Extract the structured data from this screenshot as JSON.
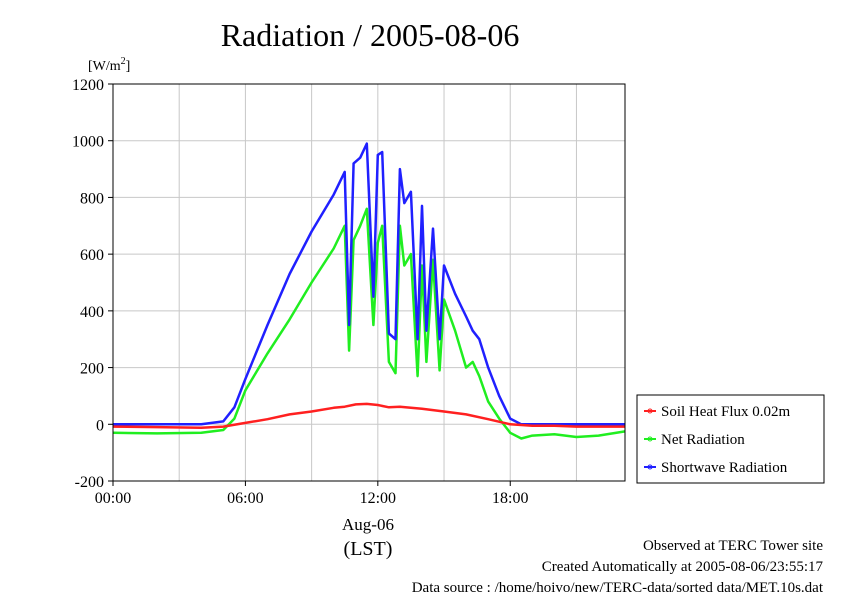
{
  "chart_data": {
    "type": "line",
    "title": "Radiation / 2005-08-06",
    "ylabel_unit": "[W/m",
    "ylabel_unit_sup": "2",
    "ylabel_unit_close": "]",
    "ylim": [
      -200,
      1200
    ],
    "yticks": [
      "-200",
      "0",
      "200",
      "400",
      "600",
      "800",
      "1000",
      "1200"
    ],
    "ytick_values": [
      -200,
      0,
      200,
      400,
      600,
      800,
      1000,
      1200
    ],
    "xlim": [
      0,
      23.2
    ],
    "xtick_values": [
      0,
      6,
      12,
      18
    ],
    "xticks": [
      "00:00",
      "06:00",
      "12:00",
      "18:00"
    ],
    "xlabel_date": "Aug-06",
    "xlabel_tz": "(LST)",
    "grid": true,
    "legend_position": "right",
    "series": [
      {
        "name": "Soil Heat Flux 0.02m",
        "color": "#ff2020",
        "x": [
          0,
          2,
          4,
          5,
          6,
          7,
          8,
          9,
          10,
          10.5,
          11,
          11.5,
          12,
          12.5,
          13,
          13.5,
          14,
          15,
          16,
          17,
          18,
          19,
          20,
          21,
          22,
          23.2
        ],
        "y": [
          -8,
          -10,
          -12,
          -8,
          5,
          18,
          35,
          45,
          58,
          62,
          70,
          72,
          68,
          60,
          62,
          58,
          55,
          45,
          35,
          18,
          0,
          -5,
          -5,
          -8,
          -8,
          -8
        ]
      },
      {
        "name": "Net Radiation",
        "color": "#20ee20",
        "x": [
          0,
          2,
          4,
          5,
          5.5,
          6,
          7,
          8,
          9,
          10,
          10.5,
          10.7,
          10.9,
          11.2,
          11.5,
          11.8,
          12,
          12.2,
          12.5,
          12.8,
          13,
          13.2,
          13.5,
          13.8,
          14,
          14.2,
          14.5,
          14.8,
          15,
          15.5,
          16,
          16.3,
          16.6,
          17,
          17.5,
          18,
          18.5,
          19,
          20,
          21,
          22,
          23.2
        ],
        "y": [
          -30,
          -32,
          -30,
          -20,
          20,
          120,
          250,
          370,
          500,
          620,
          700,
          260,
          650,
          700,
          760,
          350,
          640,
          700,
          220,
          180,
          700,
          560,
          600,
          170,
          560,
          220,
          580,
          190,
          440,
          330,
          200,
          220,
          170,
          80,
          20,
          -30,
          -50,
          -40,
          -35,
          -45,
          -40,
          -25
        ]
      },
      {
        "name": "Shortwave Radiation",
        "color": "#2020ff",
        "x": [
          0,
          2,
          4,
          5,
          5.5,
          6,
          7,
          8,
          9,
          10,
          10.5,
          10.7,
          10.9,
          11.2,
          11.5,
          11.8,
          12,
          12.2,
          12.5,
          12.8,
          13,
          13.2,
          13.5,
          13.8,
          14,
          14.2,
          14.5,
          14.8,
          15,
          15.5,
          16,
          16.3,
          16.6,
          17,
          17.5,
          18,
          18.5,
          19,
          20,
          21,
          22,
          23.2
        ],
        "y": [
          0,
          0,
          0,
          10,
          60,
          160,
          350,
          530,
          680,
          810,
          890,
          350,
          920,
          940,
          990,
          450,
          950,
          960,
          320,
          300,
          900,
          780,
          820,
          300,
          770,
          330,
          690,
          300,
          560,
          460,
          380,
          330,
          300,
          200,
          100,
          20,
          0,
          0,
          0,
          0,
          0,
          0
        ]
      }
    ]
  },
  "footer": {
    "line1": "Observed at TERC Tower site",
    "line2": "Created Automatically at 2005-08-06/23:55:17",
    "line3": "Data source : /home/hoivo/new/TERC-data/sorted  data/MET.10s.dat"
  }
}
